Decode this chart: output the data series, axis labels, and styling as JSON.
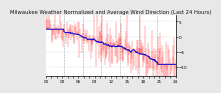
{
  "title": "Milwaukee Weather Normalized and Average Wind Direction (Last 24 Hours)",
  "background_color": "#e8e8e8",
  "plot_bg_color": "#ffffff",
  "grid_color": "#aaaaaa",
  "line_color_raw": "#ff0000",
  "line_color_avg": "#0000cc",
  "y_min": -13,
  "y_max": 7,
  "yticks": [
    5,
    0,
    -5,
    -10
  ],
  "num_points": 288,
  "seed": 42,
  "title_fontsize": 3.8,
  "tick_fontsize": 3.0,
  "num_vgrid": 6
}
